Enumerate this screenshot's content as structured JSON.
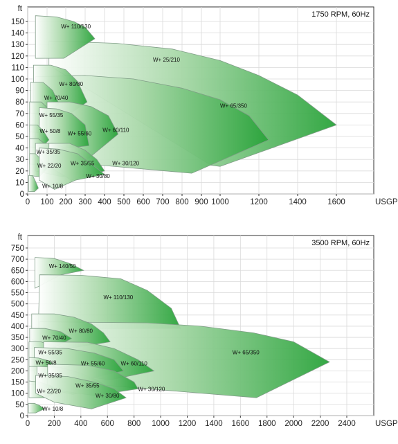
{
  "chart_data": [
    {
      "type": "area",
      "title": "1750 RPM, 60Hz",
      "y_unit": "ft",
      "x_unit": "USGPM",
      "xlim": [
        0,
        1800
      ],
      "ylim": [
        0,
        160
      ],
      "x_ticks": [
        0,
        100,
        200,
        300,
        400,
        500,
        600,
        700,
        800,
        900,
        1000,
        1200,
        1400,
        1600
      ],
      "y_ticks": [
        0,
        10,
        20,
        30,
        40,
        50,
        60,
        70,
        80,
        90,
        100,
        110,
        120,
        130,
        140,
        150
      ],
      "grid": true,
      "colors": {
        "fill_light": "#ffffff",
        "fill_dark": "#29a33a",
        "stroke": "#7f9c86"
      },
      "series": [
        {
          "name": "W+ 25/210",
          "label_at": [
            650,
            115
          ],
          "points": [
            [
              110,
              133
            ],
            [
              460,
              131
            ],
            [
              750,
              126
            ],
            [
              1000,
              116
            ],
            [
              1200,
              103
            ],
            [
              1400,
              86
            ],
            [
              1600,
              60
            ],
            [
              1000,
              24
            ],
            [
              950,
              25
            ],
            [
              110,
              112
            ]
          ]
        },
        {
          "name": "W+ 110/130",
          "label_at": [
            175,
            144
          ],
          "points": [
            [
              40,
              155
            ],
            [
              150,
              154
            ],
            [
              240,
              150
            ],
            [
              300,
              145
            ],
            [
              350,
              135
            ],
            [
              190,
              118
            ],
            [
              40,
              118
            ]
          ]
        },
        {
          "name": "W+ 65/350",
          "label_at": [
            1000,
            75
          ],
          "points": [
            [
              40,
              102
            ],
            [
              300,
              103
            ],
            [
              550,
              100
            ],
            [
              800,
              92
            ],
            [
              1000,
              82
            ],
            [
              1150,
              68
            ],
            [
              1250,
              47
            ],
            [
              850,
              18
            ],
            [
              40,
              30
            ]
          ]
        },
        {
          "name": "W+ 80/80",
          "label_at": [
            165,
            94
          ],
          "points": [
            [
              30,
              112
            ],
            [
              120,
              112
            ],
            [
              200,
              108
            ],
            [
              260,
              98
            ],
            [
              310,
              80
            ],
            [
              180,
              65
            ],
            [
              30,
              70
            ]
          ]
        },
        {
          "name": "W+ 70/40",
          "label_at": [
            85,
            82
          ],
          "points": [
            [
              15,
              97
            ],
            [
              80,
              97
            ],
            [
              130,
              90
            ],
            [
              165,
              78
            ],
            [
              110,
              70
            ],
            [
              15,
              70
            ]
          ]
        },
        {
          "name": "W+ 55/35",
          "label_at": [
            60,
            67
          ],
          "points": [
            [
              10,
              80
            ],
            [
              70,
              80
            ],
            [
              115,
              73
            ],
            [
              150,
              60
            ],
            [
              90,
              53
            ],
            [
              10,
              54
            ]
          ]
        },
        {
          "name": "W+ 60/110",
          "label_at": [
            390,
            54
          ],
          "points": [
            [
              100,
              80
            ],
            [
              220,
              80
            ],
            [
              330,
              76
            ],
            [
              420,
              68
            ],
            [
              470,
              52
            ],
            [
              310,
              30
            ],
            [
              100,
              42
            ]
          ]
        },
        {
          "name": "W+ 55/60",
          "label_at": [
            210,
            51
          ],
          "points": [
            [
              60,
              75
            ],
            [
              150,
              74
            ],
            [
              230,
              70
            ],
            [
              300,
              60
            ],
            [
              320,
              42
            ],
            [
              210,
              40
            ],
            [
              60,
              45
            ]
          ]
        },
        {
          "name": "W+ 50/8",
          "label_at": [
            62,
            53
          ],
          "points": [
            [
              10,
              60
            ],
            [
              50,
              60
            ],
            [
              80,
              55
            ],
            [
              110,
              47
            ],
            [
              70,
              40
            ],
            [
              10,
              41
            ]
          ]
        },
        {
          "name": "W+ 35/35",
          "label_at": [
            45,
            35
          ],
          "points": [
            [
              10,
              48
            ],
            [
              55,
              48
            ],
            [
              100,
              42
            ],
            [
              130,
              32
            ],
            [
              80,
              25
            ],
            [
              10,
              26
            ]
          ]
        },
        {
          "name": "W+ 35/55",
          "label_at": [
            225,
            25
          ],
          "points": [
            [
              40,
              44
            ],
            [
              130,
              44
            ],
            [
              200,
              40
            ],
            [
              260,
              30
            ],
            [
              280,
              18
            ],
            [
              180,
              15
            ],
            [
              40,
              20
            ]
          ]
        },
        {
          "name": "W+ 30/120",
          "label_at": [
            440,
            25
          ],
          "points": [
            [
              110,
              44
            ],
            [
              220,
              44
            ],
            [
              300,
              38
            ],
            [
              360,
              30
            ],
            [
              400,
              20
            ],
            [
              230,
              12
            ],
            [
              110,
              24
            ]
          ]
        },
        {
          "name": "W+ 22/20",
          "label_at": [
            50,
            23
          ],
          "points": [
            [
              10,
              35
            ],
            [
              40,
              35
            ],
            [
              70,
              30
            ],
            [
              100,
              22
            ],
            [
              60,
              15
            ],
            [
              10,
              16
            ]
          ]
        },
        {
          "name": "W+ 30/80",
          "label_at": [
            305,
            14
          ],
          "points": [
            [
              60,
              40
            ],
            [
              160,
              39
            ],
            [
              260,
              35
            ],
            [
              340,
              25
            ],
            [
              400,
              17
            ],
            [
              250,
              12
            ],
            [
              140,
              4
            ],
            [
              60,
              12
            ]
          ]
        },
        {
          "name": "W+ 10/8",
          "label_at": [
            75,
            5
          ],
          "points": [
            [
              5,
              16
            ],
            [
              25,
              16
            ],
            [
              40,
              11
            ],
            [
              55,
              5
            ],
            [
              35,
              2
            ],
            [
              5,
              2
            ]
          ]
        }
      ]
    },
    {
      "type": "area",
      "title": "3500 RPM, 60Hz",
      "y_unit": "ft",
      "x_unit": "USGPM",
      "xlim": [
        0,
        2600
      ],
      "ylim": [
        0,
        800
      ],
      "x_ticks": [
        0,
        200,
        400,
        600,
        800,
        1000,
        1200,
        1400,
        1600,
        1800,
        2000,
        2200,
        2400
      ],
      "y_ticks": [
        0,
        50,
        100,
        150,
        200,
        250,
        300,
        350,
        400,
        450,
        500,
        550,
        600,
        650,
        700,
        750
      ],
      "grid": true,
      "colors": {
        "fill_light": "#ffffff",
        "fill_dark": "#29a33a",
        "stroke": "#7f9c86"
      },
      "series": [
        {
          "name": "W+ 140/50",
          "label_at": [
            160,
            660
          ],
          "points": [
            [
              55,
              708
            ],
            [
              200,
              703
            ],
            [
              320,
              680
            ],
            [
              420,
              650
            ],
            [
              250,
              630
            ],
            [
              55,
              570
            ]
          ]
        },
        {
          "name": "W+ 110/130",
          "label_at": [
            570,
            520
          ],
          "points": [
            [
              90,
              630
            ],
            [
              400,
              628
            ],
            [
              700,
              612
            ],
            [
              900,
              560
            ],
            [
              1080,
              480
            ],
            [
              1150,
              390
            ],
            [
              80,
              390
            ]
          ]
        },
        {
          "name": "W+ 65/350",
          "label_at": [
            1540,
            275
          ],
          "points": [
            [
              90,
              420
            ],
            [
              900,
              415
            ],
            [
              1300,
              400
            ],
            [
              1700,
              370
            ],
            [
              2000,
              330
            ],
            [
              2270,
              240
            ],
            [
              1720,
              80
            ],
            [
              90,
              160
            ]
          ]
        },
        {
          "name": "W+ 80/80",
          "label_at": [
            310,
            370
          ],
          "points": [
            [
              30,
              455
            ],
            [
              200,
              455
            ],
            [
              350,
              440
            ],
            [
              480,
              410
            ],
            [
              570,
              370
            ],
            [
              620,
              330
            ],
            [
              300,
              300
            ],
            [
              30,
              340
            ]
          ]
        },
        {
          "name": "W+ 70/40",
          "label_at": [
            110,
            340
          ],
          "points": [
            [
              15,
              390
            ],
            [
              130,
              390
            ],
            [
              250,
              375
            ],
            [
              330,
              345
            ],
            [
              200,
              305
            ],
            [
              15,
              300
            ]
          ]
        },
        {
          "name": "W+ 55/35",
          "label_at": [
            80,
            275
          ],
          "points": [
            [
              10,
              330
            ],
            [
              100,
              330
            ],
            [
              200,
              310
            ],
            [
              270,
              280
            ],
            [
              160,
              250
            ],
            [
              10,
              250
            ]
          ]
        },
        {
          "name": "W+ 60/110",
          "label_at": [
            700,
            225
          ],
          "points": [
            [
              120,
              330
            ],
            [
              450,
              328
            ],
            [
              650,
              300
            ],
            [
              830,
              250
            ],
            [
              950,
              200
            ],
            [
              620,
              160
            ],
            [
              120,
              200
            ]
          ]
        },
        {
          "name": "W+ 55/60",
          "label_at": [
            400,
            225
          ],
          "points": [
            [
              50,
              305
            ],
            [
              300,
              300
            ],
            [
              500,
              280
            ],
            [
              650,
              250
            ],
            [
              720,
              200
            ],
            [
              420,
              160
            ],
            [
              50,
              190
            ]
          ]
        },
        {
          "name": "W+ 50/8",
          "label_at": [
            60,
            228
          ],
          "points": [
            [
              10,
              260
            ],
            [
              80,
              258
            ],
            [
              160,
              245
            ],
            [
              210,
              220
            ],
            [
              130,
              200
            ],
            [
              10,
              200
            ]
          ]
        },
        {
          "name": "W+ 35/35",
          "label_at": [
            80,
            170
          ],
          "points": [
            [
              10,
              220
            ],
            [
              120,
              218
            ],
            [
              220,
              200
            ],
            [
              300,
              170
            ],
            [
              200,
              140
            ],
            [
              10,
              140
            ]
          ]
        },
        {
          "name": "W+ 35/55",
          "label_at": [
            360,
            125
          ],
          "points": [
            [
              70,
              220
            ],
            [
              250,
              215
            ],
            [
              400,
              190
            ],
            [
              520,
              160
            ],
            [
              600,
              130
            ],
            [
              340,
              95
            ],
            [
              70,
              130
            ]
          ]
        },
        {
          "name": "W+ 30/120",
          "label_at": [
            830,
            110
          ],
          "points": [
            [
              150,
              230
            ],
            [
              450,
              225
            ],
            [
              650,
              200
            ],
            [
              800,
              150
            ],
            [
              830,
              120
            ],
            [
              500,
              90
            ],
            [
              150,
              120
            ]
          ]
        },
        {
          "name": "W+ 22/20",
          "label_at": [
            70,
            100
          ],
          "points": [
            [
              10,
              155
            ],
            [
              90,
              150
            ],
            [
              170,
              135
            ],
            [
              230,
              110
            ],
            [
              140,
              80
            ],
            [
              10,
              80
            ]
          ]
        },
        {
          "name": "W+ 30/80",
          "label_at": [
            510,
            80
          ],
          "points": [
            [
              60,
              180
            ],
            [
              300,
              175
            ],
            [
              500,
              150
            ],
            [
              650,
              120
            ],
            [
              740,
              80
            ],
            [
              480,
              30
            ],
            [
              200,
              60
            ],
            [
              60,
              100
            ]
          ]
        },
        {
          "name": "W+ 10/8",
          "label_at": [
            110,
            22
          ],
          "points": [
            [
              5,
              55
            ],
            [
              50,
              55
            ],
            [
              90,
              45
            ],
            [
              125,
              30
            ],
            [
              60,
              12
            ],
            [
              5,
              12
            ]
          ]
        }
      ]
    }
  ]
}
